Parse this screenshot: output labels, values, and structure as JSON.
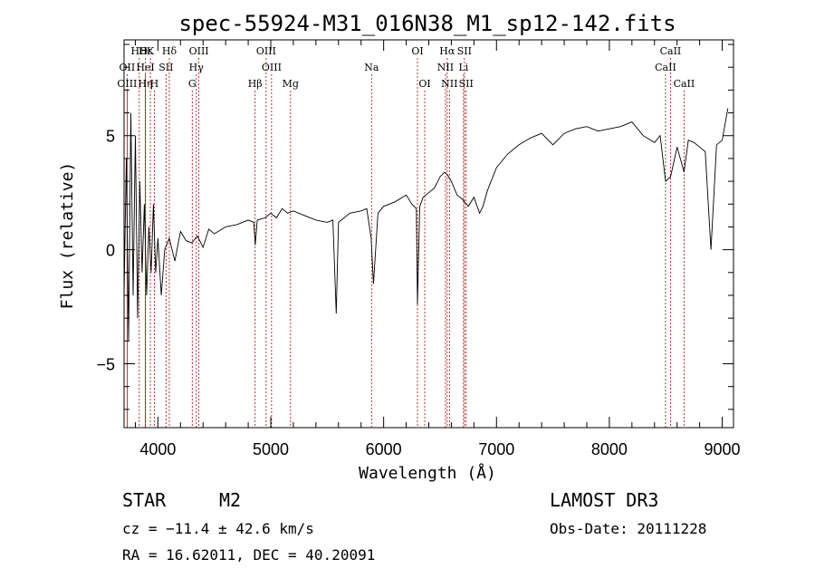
{
  "chart_data": {
    "type": "line",
    "title": "spec-55924-M31_016N38_M1_sp12-142.fits",
    "xlabel": "Wavelength (Å)",
    "ylabel": "Flux (relative)",
    "xlim": [
      3700,
      9100
    ],
    "ylim": [
      -7.8,
      9.2
    ],
    "x_ticks": [
      4000,
      5000,
      6000,
      7000,
      8000,
      9000
    ],
    "y_ticks": [
      -5,
      0,
      5
    ],
    "series": [
      {
        "name": "flux",
        "x": [
          3700,
          3720,
          3740,
          3760,
          3780,
          3800,
          3820,
          3840,
          3860,
          3880,
          3900,
          3920,
          3940,
          3960,
          3980,
          4000,
          4030,
          4060,
          4100,
          4150,
          4200,
          4250,
          4300,
          4350,
          4400,
          4450,
          4500,
          4600,
          4700,
          4800,
          4850,
          4862,
          4880,
          4950,
          5000,
          5050,
          5100,
          5150,
          5200,
          5300,
          5400,
          5500,
          5550,
          5580,
          5600,
          5650,
          5700,
          5800,
          5850,
          5890,
          5910,
          5950,
          6000,
          6100,
          6200,
          6250,
          6290,
          6300,
          6320,
          6350,
          6400,
          6450,
          6500,
          6540,
          6563,
          6600,
          6650,
          6700,
          6750,
          6800,
          6850,
          6880,
          6920,
          7000,
          7100,
          7200,
          7300,
          7400,
          7500,
          7600,
          7700,
          7800,
          7900,
          8000,
          8100,
          8200,
          8300,
          8400,
          8450,
          8498,
          8542,
          8600,
          8662,
          8700,
          8750,
          8800,
          8850,
          8900,
          8950,
          9000,
          9050
        ],
        "y": [
          -2,
          4,
          -4,
          6,
          -2,
          5,
          -3,
          3,
          -1,
          2,
          -2,
          1,
          -1,
          2,
          -1,
          0.5,
          -2,
          0,
          0.5,
          -0.5,
          0.8,
          0.4,
          0.3,
          0.6,
          0.1,
          0.9,
          0.7,
          1.0,
          1.1,
          1.3,
          1.2,
          0.2,
          1.3,
          1.4,
          1.6,
          1.4,
          1.8,
          1.6,
          1.7,
          1.5,
          1.3,
          1.2,
          1.3,
          -2.8,
          1.2,
          1.4,
          1.6,
          1.7,
          1.8,
          0.5,
          -1.5,
          1.6,
          1.9,
          2.1,
          2.4,
          2.0,
          1.8,
          -2.4,
          1.9,
          2.3,
          2.5,
          2.7,
          3.2,
          3.4,
          3.3,
          3.0,
          2.4,
          2.2,
          1.9,
          2.3,
          1.6,
          1.9,
          2.6,
          3.6,
          4.2,
          4.6,
          4.9,
          5.1,
          4.6,
          5.1,
          5.3,
          5.4,
          5.2,
          5.3,
          5.4,
          5.6,
          5.0,
          4.7,
          5.0,
          3.0,
          3.2,
          4.5,
          3.4,
          4.8,
          4.7,
          4.5,
          4.3,
          0.0,
          4.6,
          4.8,
          6.2
        ]
      }
    ],
    "line_markers": [
      {
        "label": "HΘ",
        "x": 3835,
        "row": 1
      },
      {
        "label": "OII",
        "x": 3727,
        "row": 2
      },
      {
        "label": "OIII",
        "x": 3727,
        "row": 3
      },
      {
        "label": "Hε",
        "x": 3890,
        "row": 1
      },
      {
        "label": "K",
        "x": 3933,
        "row": 1
      },
      {
        "label": "HeI",
        "x": 3889,
        "row": 2
      },
      {
        "label": "Hη",
        "x": 3889,
        "row": 3
      },
      {
        "label": "H",
        "x": 3968,
        "row": 3
      },
      {
        "label": "SII",
        "x": 4072,
        "row": 2
      },
      {
        "label": "Hδ",
        "x": 4101,
        "row": 1
      },
      {
        "label": "OIII",
        "x": 4363,
        "row": 1
      },
      {
        "label": "Hγ",
        "x": 4340,
        "row": 2
      },
      {
        "label": "G",
        "x": 4304,
        "row": 3
      },
      {
        "label": "Hβ",
        "x": 4861,
        "row": 3
      },
      {
        "label": "OIII",
        "x": 4959,
        "row": 1
      },
      {
        "label": "OIII",
        "x": 5007,
        "row": 2
      },
      {
        "label": "Mg",
        "x": 5175,
        "row": 3
      },
      {
        "label": "Na",
        "x": 5893,
        "row": 2
      },
      {
        "label": "OI",
        "x": 6300,
        "row": 1
      },
      {
        "label": "OI",
        "x": 6364,
        "row": 3
      },
      {
        "label": "Hα",
        "x": 6563,
        "row": 1
      },
      {
        "label": "NII",
        "x": 6548,
        "row": 2
      },
      {
        "label": "NII",
        "x": 6583,
        "row": 3
      },
      {
        "label": "SII",
        "x": 6716,
        "row": 1
      },
      {
        "label": "Li",
        "x": 6708,
        "row": 2
      },
      {
        "label": "SII",
        "x": 6731,
        "row": 3
      },
      {
        "label": "CaII",
        "x": 8542,
        "row": 1
      },
      {
        "label": "CaII",
        "x": 8498,
        "row": 2
      },
      {
        "label": "CaII",
        "x": 8662,
        "row": 3
      }
    ]
  },
  "info": {
    "object_class": "STAR",
    "subclass": "M2",
    "survey": "LAMOST DR3",
    "redshift": "cz = −11.4 ± 42.6 km/s",
    "obs_date": "Obs-Date: 20111228",
    "coords": "RA =  16.62011, DEC =  40.20091"
  }
}
